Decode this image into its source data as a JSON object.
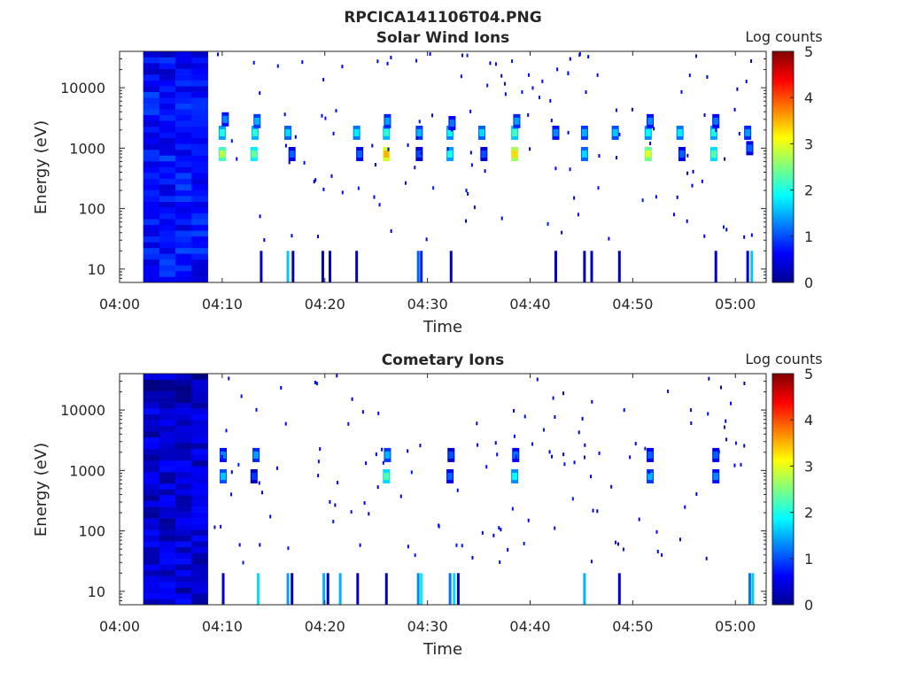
{
  "figure": {
    "title": "RPCICA141106T04.PNG"
  },
  "chart_data": [
    {
      "type": "heatmap",
      "title": "Solar Wind Ions",
      "xlabel": "Time",
      "ylabel": "Energy (eV)",
      "x_ticks": [
        "04:00",
        "04:10",
        "04:20",
        "04:30",
        "04:40",
        "04:50",
        "05:00"
      ],
      "y_ticks": [
        "10",
        "100",
        "1000",
        "10000"
      ],
      "y_scale": "log",
      "xlim_minutes": [
        0,
        63
      ],
      "ylim": [
        6,
        40000
      ],
      "colorbar": {
        "label": "Log counts",
        "ticks": [
          "0",
          "1",
          "2",
          "3",
          "4",
          "5"
        ],
        "range": [
          0,
          5
        ],
        "colormap": "jet"
      },
      "background_block": {
        "x_start_min": 2.3,
        "x_end_min": 8.6,
        "typical_log_counts": 0.7
      },
      "spots": [
        {
          "t": 10.0,
          "e": 800,
          "v": 2.2
        },
        {
          "t": 10.0,
          "e": 1800,
          "v": 1.4
        },
        {
          "t": 10.3,
          "e": 3000,
          "v": 0.7
        },
        {
          "t": 13.1,
          "e": 800,
          "v": 1.8
        },
        {
          "t": 13.2,
          "e": 1800,
          "v": 1.5
        },
        {
          "t": 13.4,
          "e": 2800,
          "v": 0.9
        },
        {
          "t": 16.4,
          "e": 1800,
          "v": 1.1
        },
        {
          "t": 16.8,
          "e": 800,
          "v": 0.5
        },
        {
          "t": 23.1,
          "e": 1800,
          "v": 1.2
        },
        {
          "t": 23.4,
          "e": 800,
          "v": 0.5
        },
        {
          "t": 26.0,
          "e": 800,
          "v": 2.9
        },
        {
          "t": 26.0,
          "e": 1800,
          "v": 1.5
        },
        {
          "t": 26.1,
          "e": 2800,
          "v": 0.8
        },
        {
          "t": 29.2,
          "e": 1800,
          "v": 0.9
        },
        {
          "t": 29.2,
          "e": 800,
          "v": 0.4
        },
        {
          "t": 32.2,
          "e": 800,
          "v": 1.4
        },
        {
          "t": 32.2,
          "e": 1800,
          "v": 1.3
        },
        {
          "t": 32.4,
          "e": 2600,
          "v": 0.6
        },
        {
          "t": 35.3,
          "e": 1800,
          "v": 1.1
        },
        {
          "t": 35.5,
          "e": 800,
          "v": 0.4
        },
        {
          "t": 38.5,
          "e": 800,
          "v": 2.7
        },
        {
          "t": 38.5,
          "e": 1800,
          "v": 1.6
        },
        {
          "t": 38.7,
          "e": 2800,
          "v": 0.8
        },
        {
          "t": 42.5,
          "e": 1800,
          "v": 0.7
        },
        {
          "t": 45.3,
          "e": 800,
          "v": 1.1
        },
        {
          "t": 45.3,
          "e": 1800,
          "v": 0.9
        },
        {
          "t": 48.3,
          "e": 1800,
          "v": 1.0
        },
        {
          "t": 51.5,
          "e": 800,
          "v": 2.4
        },
        {
          "t": 51.5,
          "e": 1800,
          "v": 1.3
        },
        {
          "t": 51.7,
          "e": 2800,
          "v": 0.7
        },
        {
          "t": 54.6,
          "e": 1800,
          "v": 1.2
        },
        {
          "t": 54.8,
          "e": 800,
          "v": 0.5
        },
        {
          "t": 57.9,
          "e": 800,
          "v": 1.7
        },
        {
          "t": 57.9,
          "e": 1800,
          "v": 1.4
        },
        {
          "t": 58.1,
          "e": 2800,
          "v": 0.6
        },
        {
          "t": 61.2,
          "e": 1800,
          "v": 0.8
        },
        {
          "t": 61.4,
          "e": 1000,
          "v": 0.5
        }
      ],
      "low_energy_bars": [
        {
          "t": 13.8,
          "v": 0.3
        },
        {
          "t": 16.4,
          "v": 1.6
        },
        {
          "t": 16.9,
          "v": 0.2
        },
        {
          "t": 19.8,
          "v": 0.3
        },
        {
          "t": 20.5,
          "v": 0.3
        },
        {
          "t": 23.1,
          "v": 0.3
        },
        {
          "t": 29.1,
          "v": 1.1
        },
        {
          "t": 29.4,
          "v": 0.8
        },
        {
          "t": 32.3,
          "v": 0.3
        },
        {
          "t": 42.5,
          "v": 0.3
        },
        {
          "t": 45.3,
          "v": 0.3
        },
        {
          "t": 46.0,
          "v": 0.3
        },
        {
          "t": 48.7,
          "v": 0.3
        },
        {
          "t": 58.1,
          "v": 0.3
        },
        {
          "t": 61.2,
          "v": 0.4
        },
        {
          "t": 61.6,
          "v": 1.6
        }
      ]
    },
    {
      "type": "heatmap",
      "title": "Cometary Ions",
      "xlabel": "Time",
      "ylabel": "Energy (eV)",
      "x_ticks": [
        "04:00",
        "04:10",
        "04:20",
        "04:30",
        "04:40",
        "04:50",
        "05:00"
      ],
      "y_ticks": [
        "10",
        "100",
        "1000",
        "10000"
      ],
      "y_scale": "log",
      "xlim_minutes": [
        0,
        63
      ],
      "ylim": [
        6,
        40000
      ],
      "colorbar": {
        "label": "Log counts",
        "ticks": [
          "0",
          "1",
          "2",
          "3",
          "4",
          "5"
        ],
        "range": [
          0,
          5
        ],
        "colormap": "jet"
      },
      "background_block": {
        "x_start_min": 2.3,
        "x_end_min": 8.6,
        "typical_log_counts": 0.4
      },
      "spots": [
        {
          "t": 10.1,
          "e": 800,
          "v": 1.0
        },
        {
          "t": 10.1,
          "e": 1800,
          "v": 0.7
        },
        {
          "t": 13.3,
          "e": 1800,
          "v": 0.8
        },
        {
          "t": 13.1,
          "e": 800,
          "v": 0.3
        },
        {
          "t": 26.0,
          "e": 800,
          "v": 1.7
        },
        {
          "t": 26.1,
          "e": 1800,
          "v": 0.9
        },
        {
          "t": 32.2,
          "e": 800,
          "v": 0.5
        },
        {
          "t": 32.3,
          "e": 1800,
          "v": 0.4
        },
        {
          "t": 38.5,
          "e": 800,
          "v": 1.3
        },
        {
          "t": 38.6,
          "e": 1800,
          "v": 0.6
        },
        {
          "t": 51.7,
          "e": 800,
          "v": 0.9
        },
        {
          "t": 51.7,
          "e": 1800,
          "v": 0.5
        },
        {
          "t": 58.1,
          "e": 800,
          "v": 0.7
        },
        {
          "t": 58.1,
          "e": 1800,
          "v": 0.5
        }
      ],
      "low_energy_bars": [
        {
          "t": 10.1,
          "v": 0.4
        },
        {
          "t": 13.5,
          "v": 1.7
        },
        {
          "t": 16.4,
          "v": 1.4
        },
        {
          "t": 16.8,
          "v": 0.3
        },
        {
          "t": 19.9,
          "v": 1.5
        },
        {
          "t": 20.3,
          "v": 0.3
        },
        {
          "t": 21.5,
          "v": 1.5
        },
        {
          "t": 23.2,
          "v": 0.3
        },
        {
          "t": 26.0,
          "v": 0.3
        },
        {
          "t": 29.1,
          "v": 1.3
        },
        {
          "t": 29.4,
          "v": 1.8
        },
        {
          "t": 32.2,
          "v": 1.2
        },
        {
          "t": 32.6,
          "v": 1.7
        },
        {
          "t": 33.0,
          "v": 0.3
        },
        {
          "t": 45.3,
          "v": 1.5
        },
        {
          "t": 48.7,
          "v": 0.4
        },
        {
          "t": 61.4,
          "v": 1.2
        },
        {
          "t": 61.7,
          "v": 1.6
        }
      ]
    }
  ]
}
